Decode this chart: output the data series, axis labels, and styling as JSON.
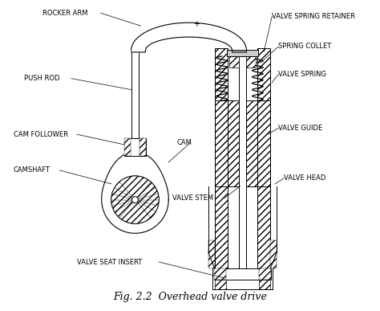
{
  "title": "Fig. 2.2  Overhead valve drive",
  "title_fontsize": 9,
  "background_color": "#ffffff",
  "line_color": "#000000",
  "labels": {
    "rocker_arm": "ROCKER ARM",
    "push_rod": "PUSH ROD",
    "cam_follower": "CAM FOLLOWER",
    "camshaft": "CAMSHAFT",
    "cam": "CAM",
    "valve_stem": "VALVE STEM",
    "valve_seat_insert": "VALVE SEAT INSERT",
    "valve_spring_retainer": "VALVE SPRING RETAINER",
    "spring_collet": "SPRING COLLET",
    "valve_spring": "VALVE SPRING",
    "valve_guide": "VALVE GUIDE",
    "valve_head": "VALVE HEAD"
  },
  "label_fontsize": 6.0
}
